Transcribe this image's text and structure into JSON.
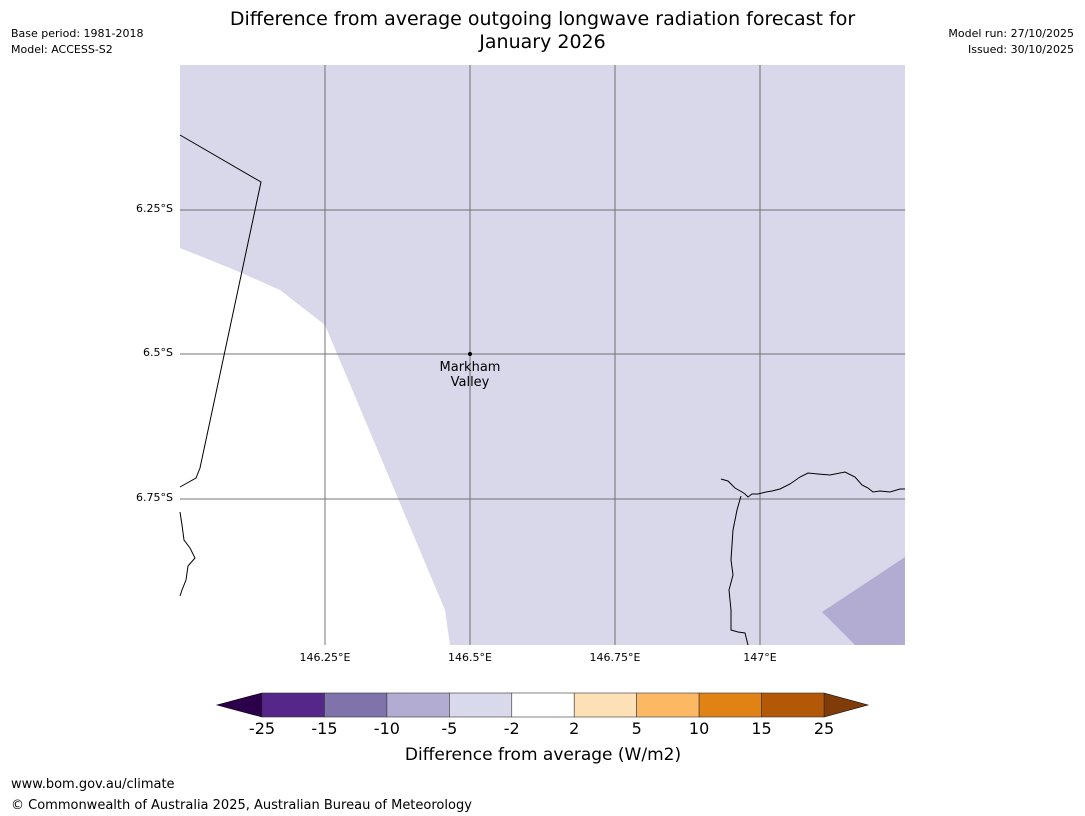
{
  "title_line1": "Difference from average outgoing longwave radiation forecast for",
  "title_line2": "January 2026",
  "meta_left": {
    "base_period": "Base period: 1981-2018",
    "model": "Model: ACCESS-S2"
  },
  "meta_right": {
    "model_run": "Model run: 27/10/2025",
    "issued": "Issued: 30/10/2025"
  },
  "map": {
    "lat_labels": [
      "6.25°S",
      "6.5°S",
      "6.75°S"
    ],
    "lon_labels": [
      "146.25°E",
      "146.5°E",
      "146.75°E",
      "147°E"
    ],
    "place_label_line1": "Markham",
    "place_label_line2": "Valley",
    "colors": {
      "fill_main": "#d8d8ea",
      "fill_dark": "#b2abd2",
      "no_data": "#ffffff"
    }
  },
  "colorbar": {
    "tick_labels": [
      "-25",
      "-15",
      "-10",
      "-5",
      "-2",
      "2",
      "5",
      "10",
      "15",
      "25"
    ],
    "colors": [
      "#542788",
      "#8073ac",
      "#b2abd2",
      "#d8d9ea",
      "#ffffff",
      "#fee0b6",
      "#fdb863",
      "#e08214",
      "#b35806"
    ],
    "under_color": "#2d004b",
    "over_color": "#7f3b08",
    "label": "Difference from average (W/m2)"
  },
  "footer": {
    "url": "www.bom.gov.au/climate",
    "copyright": "© Commonwealth of Australia 2025, Australian Bureau of Meteorology"
  }
}
